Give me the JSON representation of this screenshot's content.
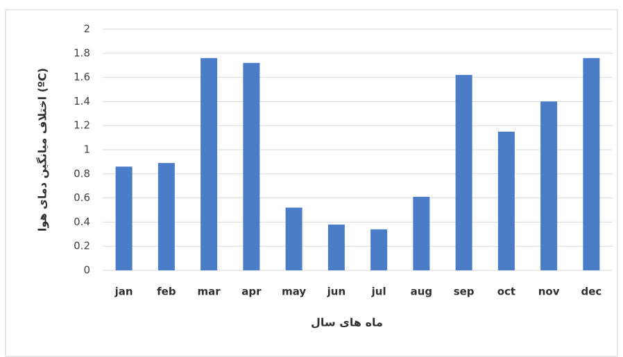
{
  "chart_data": {
    "type": "bar",
    "xlabel": "ماه های سال",
    "ylabel": "اختلاف میانگین دمای هوا (ºC)",
    "categories": [
      "jan",
      "feb",
      "mar",
      "apr",
      "may",
      "jun",
      "jul",
      "aug",
      "sep",
      "oct",
      "nov",
      "dec"
    ],
    "values": [
      0.86,
      0.89,
      1.76,
      1.72,
      0.52,
      0.38,
      0.34,
      0.61,
      1.62,
      1.15,
      1.4,
      1.76
    ],
    "color": "#4a7cc7",
    "ylim": [
      0,
      2
    ],
    "yticks": [
      0,
      0.2,
      0.4,
      0.6,
      0.8,
      1,
      1.2,
      1.4,
      1.6,
      1.8,
      2
    ],
    "grid": true
  }
}
